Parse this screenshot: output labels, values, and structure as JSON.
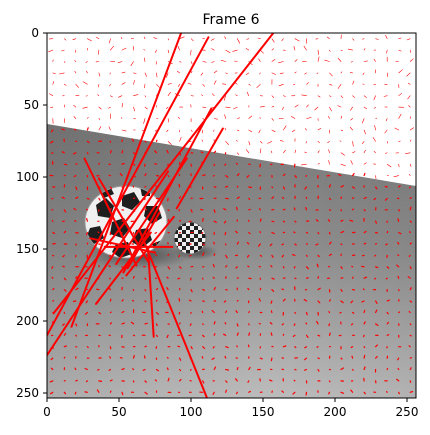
{
  "title": "Frame 6",
  "axes": {
    "x_ticks": [
      "0",
      "50",
      "100",
      "150",
      "200",
      "250"
    ],
    "y_ticks": [
      "0",
      "50",
      "100",
      "150",
      "200",
      "250"
    ],
    "xlim": [
      0,
      256
    ],
    "ylim": [
      256,
      0
    ],
    "y_inverted": true
  },
  "image": {
    "width": 256,
    "height": 256,
    "description_colors": {
      "sky": "#ffffff",
      "floor_top": "#7c7c7c",
      "floor_bottom": "#b9b9b9",
      "ball_light": "#f2f2f2",
      "ball_dark": "#202020"
    }
  },
  "overlay": {
    "color": "#ff0000",
    "grid_step": 8,
    "long_lines": [
      [
        17,
        206,
        93,
        0
      ],
      [
        0,
        226,
        84,
        97
      ],
      [
        0,
        212,
        112,
        3
      ],
      [
        5,
        196,
        157,
        0
      ],
      [
        111,
        256,
        64,
        138
      ],
      [
        74,
        213,
        70,
        150
      ],
      [
        26,
        88,
        62,
        163
      ],
      [
        36,
        102,
        70,
        160
      ],
      [
        90,
        123,
        122,
        67
      ],
      [
        48,
        162,
        97,
        88
      ],
      [
        53,
        168,
        114,
        53
      ],
      [
        30,
        144,
        75,
        154
      ],
      [
        40,
        150,
        87,
        150
      ],
      [
        55,
        170,
        88,
        129
      ],
      [
        78,
        126,
        56,
        165
      ],
      [
        34,
        190,
        72,
        140
      ]
    ]
  }
}
